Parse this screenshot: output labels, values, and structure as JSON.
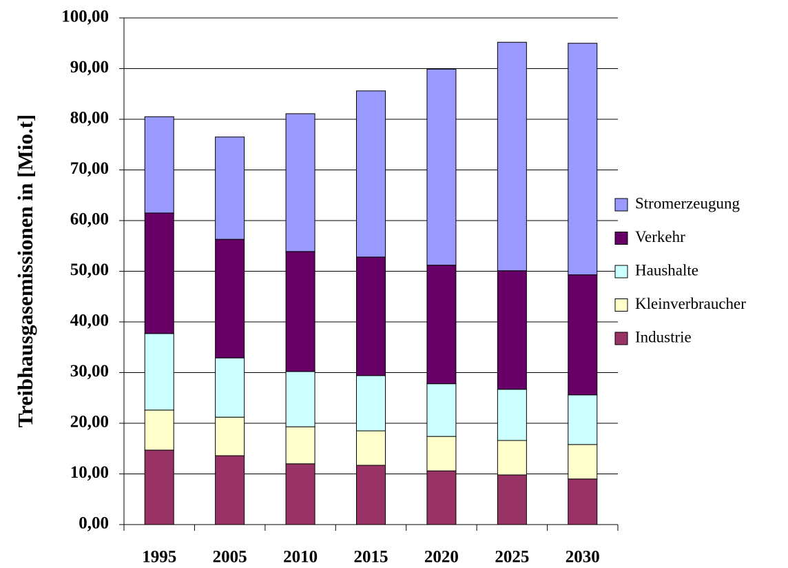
{
  "chart_data": {
    "type": "bar",
    "stacked": true,
    "y_label": "Treibhausgasemissionen in [Mio.t]",
    "categories": [
      "1995",
      "2005",
      "2010",
      "2015",
      "2020",
      "2025",
      "2030"
    ],
    "series": [
      {
        "name": "Industrie",
        "color": "#993366",
        "values": [
          14.7,
          13.6,
          12.0,
          11.7,
          10.6,
          9.8,
          9.0
        ]
      },
      {
        "name": "Kleinverbraucher",
        "color": "#ffffcc",
        "values": [
          7.9,
          7.6,
          7.3,
          6.8,
          6.8,
          6.8,
          6.8
        ]
      },
      {
        "name": "Haushalte",
        "color": "#ccffff",
        "values": [
          15.1,
          11.7,
          10.9,
          10.9,
          10.4,
          10.1,
          9.8
        ]
      },
      {
        "name": "Verkehr",
        "color": "#660066",
        "values": [
          23.8,
          23.4,
          23.7,
          23.4,
          23.4,
          23.4,
          23.7
        ]
      },
      {
        "name": "Stromerzeugung",
        "color": "#9999ff",
        "values": [
          19.0,
          20.2,
          27.2,
          32.8,
          38.7,
          45.1,
          45.7
        ]
      }
    ],
    "ylim": [
      0,
      100
    ],
    "yticks": [
      {
        "value": 0,
        "label": "0,00"
      },
      {
        "value": 10,
        "label": "10,00"
      },
      {
        "value": 20,
        "label": "20,00"
      },
      {
        "value": 30,
        "label": "30,00"
      },
      {
        "value": 40,
        "label": "40,00"
      },
      {
        "value": 50,
        "label": "50,00"
      },
      {
        "value": 60,
        "label": "60,00"
      },
      {
        "value": 70,
        "label": "70,00"
      },
      {
        "value": 80,
        "label": "80,00"
      },
      {
        "value": 90,
        "label": "90,00"
      },
      {
        "value": 100,
        "label": "100,00"
      }
    ],
    "grid": true,
    "legend": "right"
  }
}
